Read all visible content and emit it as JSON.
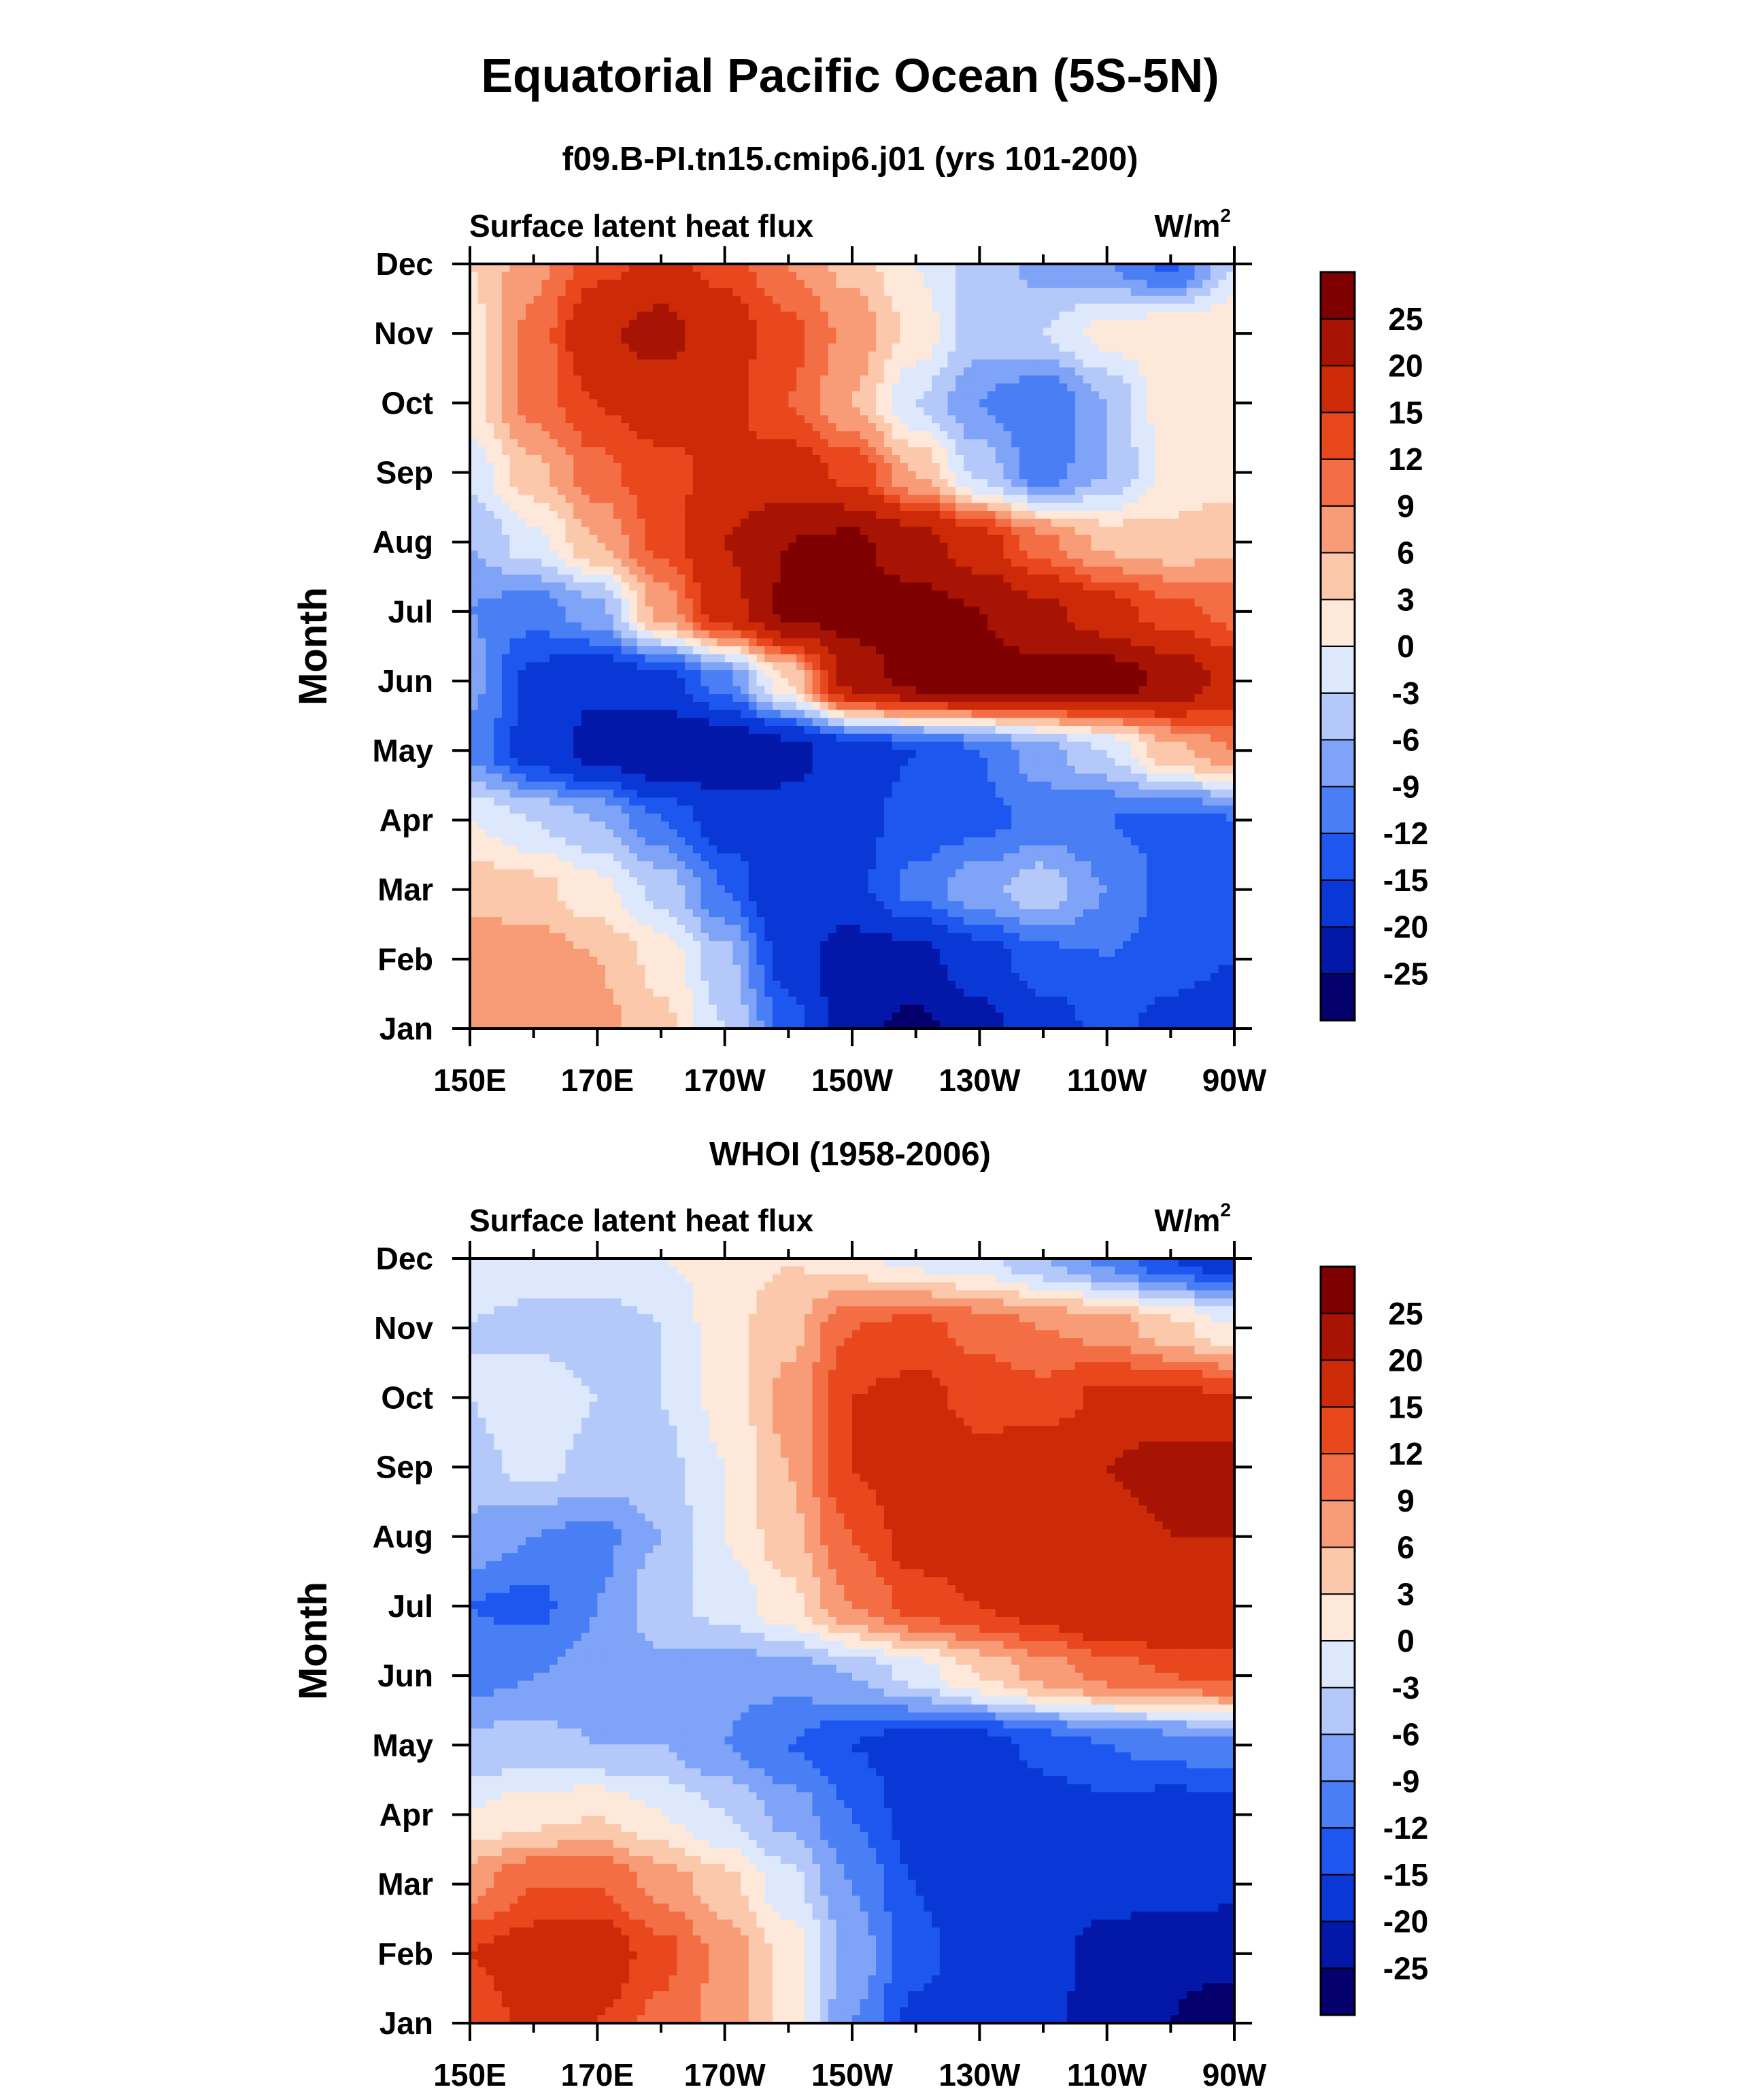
{
  "page": {
    "title": "Equatorial Pacific Ocean (5S-5N)"
  },
  "colorbar": {
    "levels": [
      -25,
      -20,
      -15,
      -12,
      -9,
      -6,
      -3,
      0,
      3,
      6,
      9,
      12,
      15,
      20,
      25
    ],
    "labels": [
      "-25",
      "-20",
      "-15",
      "-12",
      "-9",
      "-6",
      "-3",
      "0",
      "3",
      "6",
      "9",
      "12",
      "15",
      "20",
      "25"
    ],
    "colors": [
      "#04006e",
      "#0318a8",
      "#0a38d6",
      "#1e57f0",
      "#4a7ef5",
      "#7fa3f7",
      "#b4c8fa",
      "#dde8fc",
      "#fde8da",
      "#fbc8ab",
      "#f89c78",
      "#f46e45",
      "#e9471e",
      "#cd2a08",
      "#a81404",
      "#7e0000"
    ]
  },
  "chart_data": [
    {
      "type": "heatmap",
      "title": "f09.B-PI.tn15.cmip6.j01 (yrs 101-200)",
      "left_string": "Surface latent heat flux",
      "units": "W/m",
      "units_sup": "2",
      "ylabel": "Month",
      "x_tick_labels": [
        "150E",
        "170E",
        "170W",
        "150W",
        "130W",
        "110W",
        "90W"
      ],
      "x_tick_degrees_east": [
        150,
        170,
        190,
        210,
        230,
        250,
        270
      ],
      "xlim_degrees_east": [
        150,
        270
      ],
      "y_tick_labels": [
        "Jan",
        "Feb",
        "Mar",
        "Apr",
        "May",
        "Jun",
        "Jul",
        "Aug",
        "Sep",
        "Oct",
        "Nov",
        "Dec"
      ],
      "x": [
        150,
        160,
        170,
        180,
        190,
        200,
        210,
        220,
        230,
        240,
        250,
        260,
        270
      ],
      "values": [
        [
          9,
          9,
          7,
          4,
          -3,
          -13,
          -24,
          -26,
          -22,
          -17,
          -14,
          -16,
          -17
        ],
        [
          8,
          8,
          6,
          2,
          -5,
          -17,
          -23,
          -22,
          -17,
          -13,
          -12,
          -14,
          -15
        ],
        [
          5,
          4,
          1,
          -4,
          -12,
          -20,
          -16,
          -11,
          -7,
          -4,
          -9,
          -13,
          -14
        ],
        [
          0,
          -3,
          -6,
          -12,
          -17,
          -18,
          -16,
          -14,
          -13,
          -11,
          -12,
          -13,
          -12
        ],
        [
          -10,
          -17,
          -22,
          -25,
          -25,
          -22,
          -17,
          -15,
          -12,
          -7,
          -3,
          5,
          9
        ],
        [
          -8,
          -16,
          -19,
          -17,
          -10,
          3,
          22,
          27,
          27,
          27,
          28,
          24,
          18
        ],
        [
          -9,
          -11,
          -7,
          7,
          18,
          26,
          27,
          27,
          25,
          21,
          17,
          13,
          11
        ],
        [
          -6,
          -1,
          6,
          13,
          20,
          25,
          26,
          22,
          17,
          10,
          5,
          4,
          5
        ],
        [
          -2,
          5,
          11,
          14,
          16,
          17,
          14,
          6,
          -4,
          -11,
          -6,
          1,
          2
        ],
        [
          2,
          10,
          15,
          17,
          16,
          12,
          6,
          -3,
          -9,
          -12,
          -6,
          2,
          3
        ],
        [
          2,
          10,
          19,
          22,
          17,
          13,
          8,
          2,
          -5,
          -3,
          1,
          3,
          3
        ],
        [
          3,
          8,
          14,
          16,
          14,
          9,
          5,
          0,
          -4,
          -7,
          -9,
          -13,
          -3
        ]
      ]
    },
    {
      "type": "heatmap",
      "title": "WHOI (1958-2006)",
      "left_string": "Surface latent heat flux",
      "units": "W/m",
      "units_sup": "2",
      "ylabel": "Month",
      "x_tick_labels": [
        "150E",
        "170E",
        "170W",
        "150W",
        "130W",
        "110W",
        "90W"
      ],
      "x_tick_degrees_east": [
        150,
        170,
        190,
        210,
        230,
        250,
        270
      ],
      "xlim_degrees_east": [
        150,
        270
      ],
      "y_tick_labels": [
        "Jan",
        "Feb",
        "Mar",
        "Apr",
        "May",
        "Jun",
        "Jul",
        "Aug",
        "Sep",
        "Oct",
        "Nov",
        "Dec"
      ],
      "x": [
        150,
        160,
        170,
        180,
        190,
        200,
        210,
        220,
        230,
        240,
        250,
        260,
        270
      ],
      "values": [
        [
          13,
          16,
          15,
          11,
          8,
          2,
          -9,
          -16,
          -17,
          -19,
          -22,
          -25,
          -28
        ],
        [
          15,
          17,
          18,
          13,
          8,
          2,
          -7,
          -14,
          -17,
          -18,
          -22,
          -24,
          -23
        ],
        [
          8,
          12,
          12,
          8,
          4,
          -2,
          -9,
          -15,
          -18,
          -16,
          -18,
          -18,
          -19
        ],
        [
          0,
          2,
          3,
          0,
          -3,
          -7,
          -12,
          -17,
          -18,
          -17,
          -16,
          -17,
          -17
        ],
        [
          -5,
          -5,
          -6,
          -6,
          -9,
          -12,
          -15,
          -17,
          -17,
          -14,
          -12,
          -11,
          -10
        ],
        [
          -10,
          -9,
          -8,
          -7,
          -8,
          -8,
          -6,
          -2,
          3,
          7,
          10,
          12,
          13
        ],
        [
          -12,
          -13,
          -9,
          -4,
          -2,
          2,
          9,
          13,
          15,
          17,
          20,
          20,
          19
        ],
        [
          -7,
          -9,
          -10,
          -6,
          0,
          5,
          12,
          17,
          19,
          17,
          18,
          20,
          20
        ],
        [
          -4,
          -2,
          -4,
          -4,
          0,
          6,
          15,
          18,
          16,
          18,
          20,
          22,
          23
        ],
        [
          -3,
          -1,
          -3,
          -3,
          1,
          7,
          15,
          16,
          14,
          13,
          16,
          16,
          15
        ],
        [
          -3,
          -4,
          -5,
          -3,
          2,
          5,
          12,
          13,
          11,
          9,
          8,
          4,
          0
        ],
        [
          -2,
          -1,
          0,
          0,
          1,
          3,
          1,
          -1,
          -2,
          -6,
          -10,
          -15,
          -18
        ]
      ]
    }
  ]
}
